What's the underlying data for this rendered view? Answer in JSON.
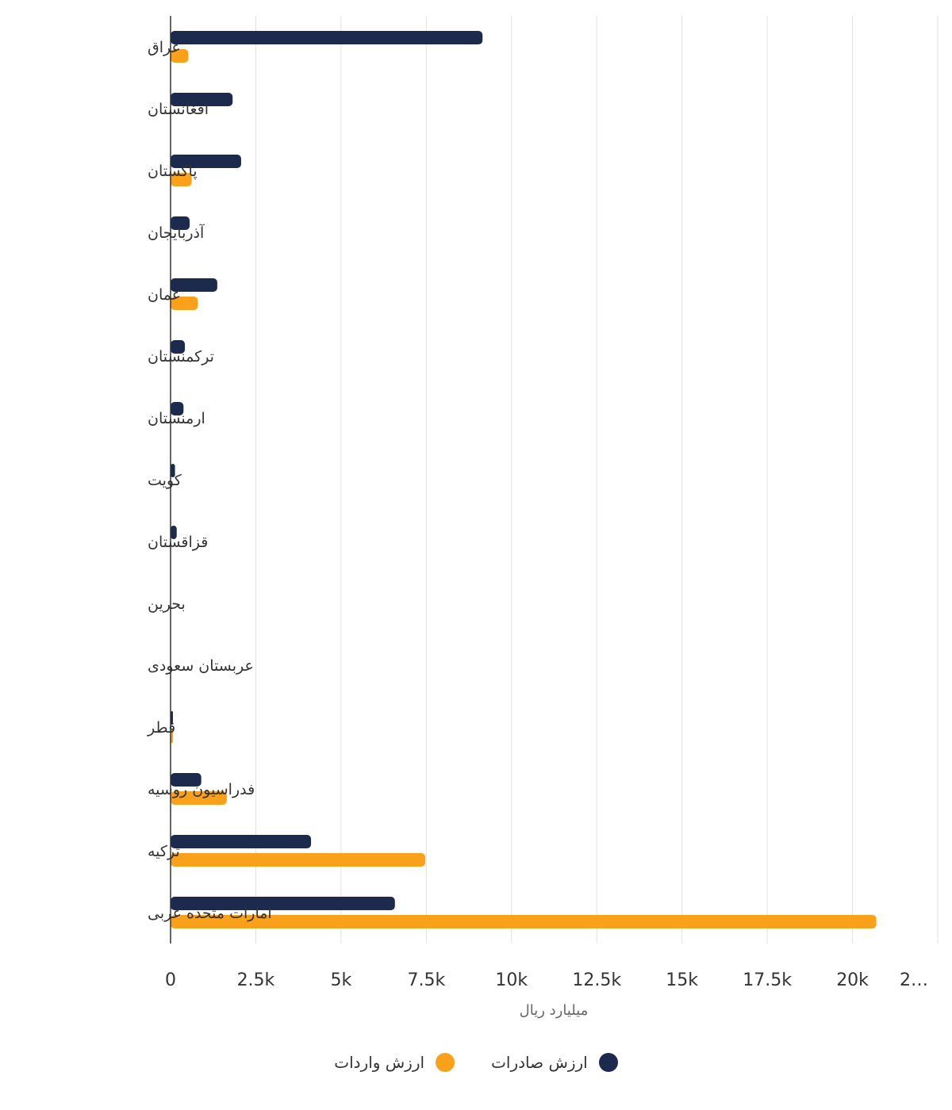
{
  "chart_data": {
    "type": "bar",
    "orientation": "horizontal",
    "categories": [
      "عراق",
      "افغانستان",
      "پاکستان",
      "آذربایجان",
      "عمان",
      "ترکمنستان",
      "ارمنستان",
      "کویت",
      "قزاقستان",
      "بحرین",
      "عربستان سعودی",
      "قطر",
      "فدراسیون روسیه",
      "ترکیه",
      "امارات متحده عربی"
    ],
    "series": [
      {
        "name": "ارزش صادرات",
        "color": "#1c2a4d",
        "values": [
          9150,
          1820,
          2070,
          560,
          1370,
          420,
          380,
          130,
          180,
          0,
          0,
          40,
          900,
          4120,
          6580
        ]
      },
      {
        "name": "ارزش واردات",
        "color": "#f9a11b",
        "values": [
          520,
          0,
          620,
          0,
          800,
          0,
          0,
          0,
          0,
          0,
          0,
          40,
          1650,
          7470,
          20700
        ]
      }
    ],
    "xlabel": "میلیارد ریال",
    "xlim": [
      0,
      22500
    ],
    "x_ticks": [
      "0",
      "2.5k",
      "5k",
      "7.5k",
      "10k",
      "12.5k",
      "15k",
      "17.5k",
      "20k",
      "2…"
    ],
    "grid": true,
    "legend": "bottom-center"
  }
}
